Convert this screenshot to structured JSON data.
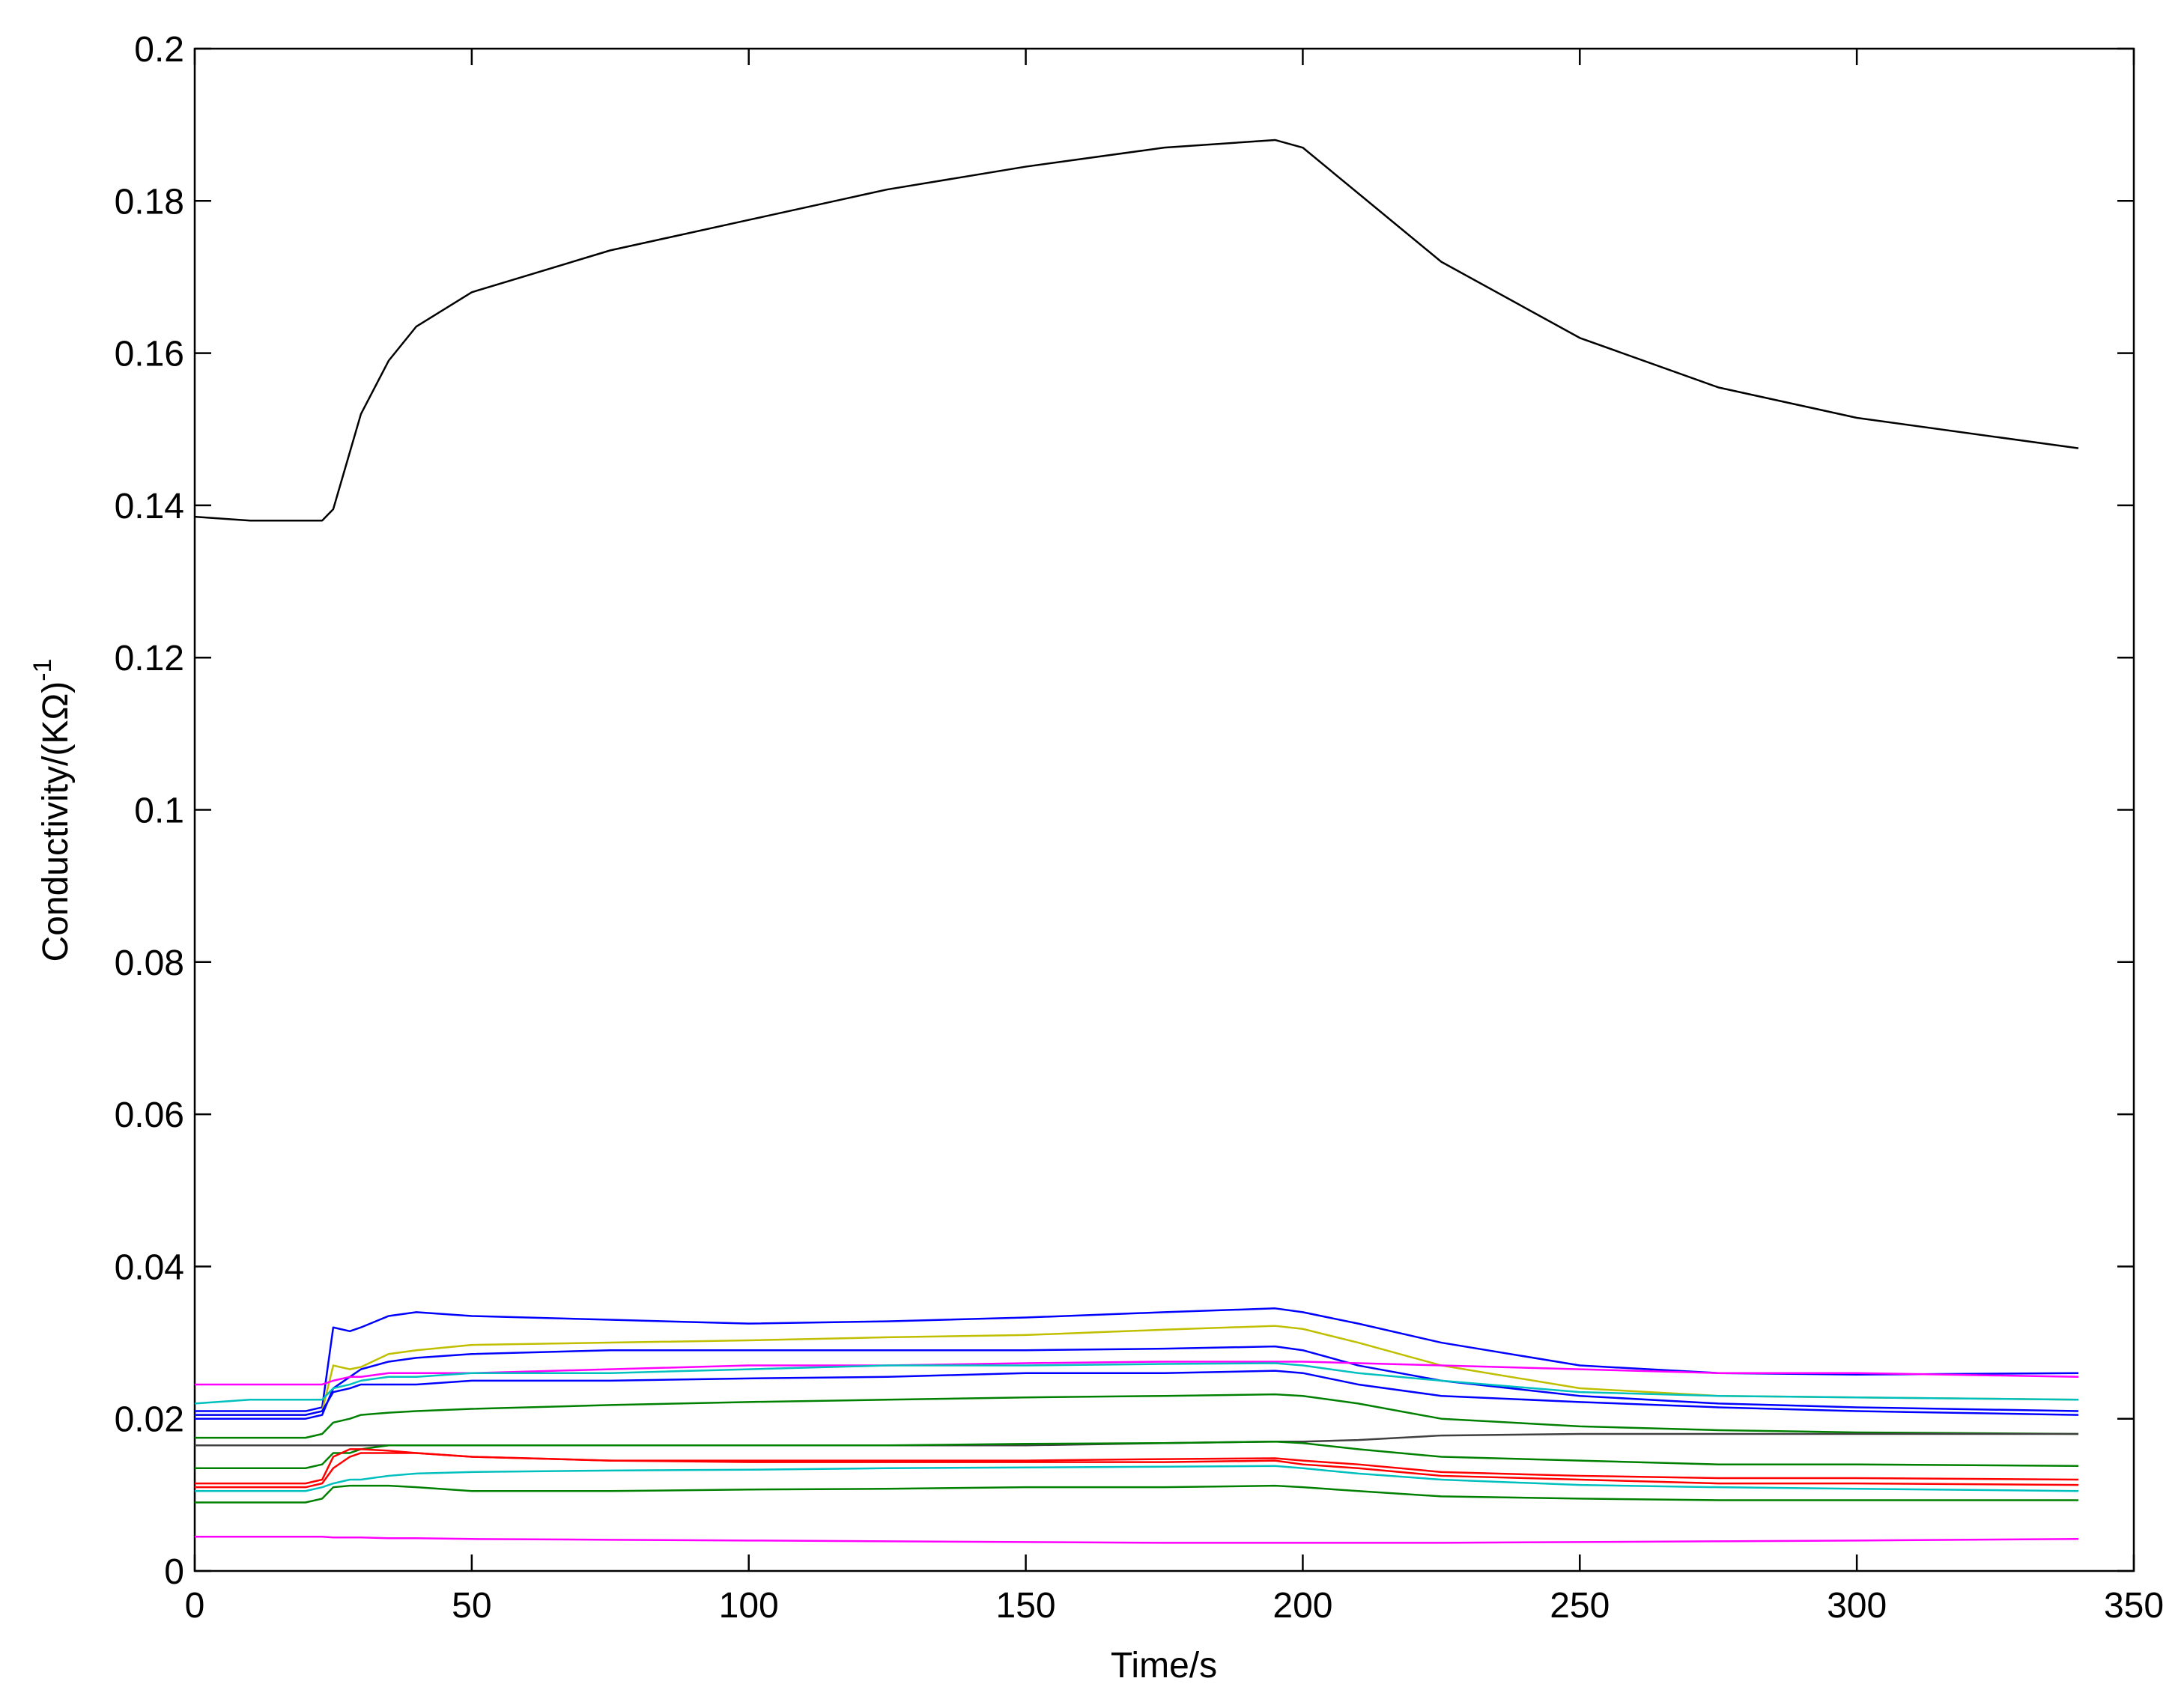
{
  "chart_data": {
    "type": "line",
    "xlabel": "Time/s",
    "ylabel": "Conductivity/(KΩ)",
    "ylabel_superscript": "-1",
    "xlim": [
      0,
      350
    ],
    "xticks": [
      0,
      50,
      100,
      150,
      200,
      250,
      300,
      350
    ],
    "ylim": [
      0,
      0.2
    ],
    "yticks": [
      0,
      0.02,
      0.04,
      0.06,
      0.08,
      0.1,
      0.12,
      0.14,
      0.16,
      0.18,
      0.2
    ],
    "grid": false,
    "x": [
      0,
      10,
      20,
      23,
      25,
      28,
      30,
      35,
      40,
      50,
      75,
      100,
      125,
      150,
      175,
      195,
      200,
      210,
      225,
      250,
      275,
      300,
      340
    ],
    "series": [
      {
        "color": "#000000",
        "values": [
          0.1385,
          0.138,
          0.138,
          0.138,
          0.1395,
          0.147,
          0.152,
          0.159,
          0.1635,
          0.168,
          0.1735,
          0.1775,
          0.1815,
          0.1845,
          0.187,
          0.188,
          0.187,
          0.181,
          0.172,
          0.162,
          0.1555,
          0.1515,
          0.1475
        ]
      },
      {
        "color": "#0000ff",
        "values": [
          0.021,
          0.021,
          0.021,
          0.0215,
          0.032,
          0.0315,
          0.032,
          0.0335,
          0.034,
          0.0335,
          0.033,
          0.0325,
          0.0328,
          0.0333,
          0.034,
          0.0345,
          0.034,
          0.0325,
          0.03,
          0.027,
          0.026,
          0.0258,
          0.026
        ]
      },
      {
        "color": "#bfbf00",
        "values": [
          0.0205,
          0.0205,
          0.0205,
          0.021,
          0.027,
          0.0265,
          0.0268,
          0.0285,
          0.029,
          0.0297,
          0.03,
          0.0303,
          0.0307,
          0.031,
          0.0317,
          0.0322,
          0.0318,
          0.03,
          0.027,
          0.024,
          0.023,
          0.0228,
          0.0225
        ]
      },
      {
        "color": "#0000ff",
        "values": [
          0.02,
          0.02,
          0.02,
          0.0205,
          0.024,
          0.0255,
          0.0265,
          0.0275,
          0.028,
          0.0285,
          0.029,
          0.029,
          0.029,
          0.029,
          0.0292,
          0.0295,
          0.029,
          0.027,
          0.025,
          0.023,
          0.022,
          0.0215,
          0.021
        ]
      },
      {
        "color": "#ff00ff",
        "values": [
          0.0245,
          0.0245,
          0.0245,
          0.0245,
          0.025,
          0.0255,
          0.0255,
          0.026,
          0.026,
          0.026,
          0.0265,
          0.027,
          0.027,
          0.0273,
          0.0275,
          0.0275,
          0.0275,
          0.0273,
          0.027,
          0.0265,
          0.026,
          0.026,
          0.0255
        ]
      },
      {
        "color": "#00bfbf",
        "values": [
          0.022,
          0.0225,
          0.0225,
          0.0225,
          0.024,
          0.0245,
          0.025,
          0.0255,
          0.0255,
          0.026,
          0.026,
          0.0265,
          0.027,
          0.027,
          0.0272,
          0.0273,
          0.027,
          0.026,
          0.025,
          0.0235,
          0.023,
          0.0228,
          0.0225
        ]
      },
      {
        "color": "#0000ff",
        "values": [
          0.0205,
          0.0205,
          0.0205,
          0.021,
          0.0235,
          0.024,
          0.0245,
          0.0245,
          0.0245,
          0.025,
          0.025,
          0.0253,
          0.0255,
          0.026,
          0.026,
          0.0263,
          0.026,
          0.0245,
          0.023,
          0.0222,
          0.0215,
          0.021,
          0.0205
        ]
      },
      {
        "color": "#008000",
        "values": [
          0.0175,
          0.0175,
          0.0175,
          0.018,
          0.0195,
          0.02,
          0.0205,
          0.0208,
          0.021,
          0.0213,
          0.0218,
          0.0222,
          0.0225,
          0.0228,
          0.023,
          0.0232,
          0.023,
          0.022,
          0.02,
          0.019,
          0.0185,
          0.0182,
          0.018
        ]
      },
      {
        "color": "#404040",
        "values": [
          0.0165,
          0.0165,
          0.0165,
          0.0165,
          0.0165,
          0.0165,
          0.0165,
          0.0165,
          0.0165,
          0.0165,
          0.0165,
          0.0165,
          0.0165,
          0.0165,
          0.0168,
          0.017,
          0.017,
          0.0172,
          0.0178,
          0.018,
          0.018,
          0.018,
          0.018
        ]
      },
      {
        "color": "#008000",
        "values": [
          0.0135,
          0.0135,
          0.0135,
          0.014,
          0.0155,
          0.0155,
          0.016,
          0.0165,
          0.0165,
          0.0165,
          0.0165,
          0.0165,
          0.0165,
          0.0167,
          0.0168,
          0.017,
          0.0168,
          0.016,
          0.015,
          0.0145,
          0.014,
          0.014,
          0.0138
        ]
      },
      {
        "color": "#ff0000",
        "values": [
          0.0115,
          0.0115,
          0.0115,
          0.012,
          0.015,
          0.016,
          0.016,
          0.0158,
          0.0155,
          0.015,
          0.0145,
          0.0145,
          0.0145,
          0.0145,
          0.0147,
          0.0148,
          0.0145,
          0.014,
          0.013,
          0.0125,
          0.0122,
          0.0122,
          0.012
        ]
      },
      {
        "color": "#ff0000",
        "values": [
          0.011,
          0.011,
          0.011,
          0.0115,
          0.0135,
          0.015,
          0.0155,
          0.0155,
          0.0155,
          0.015,
          0.0145,
          0.0143,
          0.0143,
          0.0143,
          0.0143,
          0.0145,
          0.014,
          0.0135,
          0.0125,
          0.012,
          0.0115,
          0.0115,
          0.0113
        ]
      },
      {
        "color": "#00bfbf",
        "values": [
          0.0105,
          0.0105,
          0.0105,
          0.011,
          0.0115,
          0.012,
          0.012,
          0.0125,
          0.0128,
          0.013,
          0.0132,
          0.0133,
          0.0135,
          0.0136,
          0.0137,
          0.0138,
          0.0135,
          0.0128,
          0.012,
          0.0113,
          0.011,
          0.0108,
          0.0105
        ]
      },
      {
        "color": "#008000",
        "values": [
          0.009,
          0.009,
          0.009,
          0.0095,
          0.011,
          0.0112,
          0.0112,
          0.0112,
          0.011,
          0.0105,
          0.0105,
          0.0107,
          0.0108,
          0.011,
          0.011,
          0.0112,
          0.011,
          0.0105,
          0.0098,
          0.0095,
          0.0093,
          0.0093,
          0.0093
        ]
      },
      {
        "color": "#ff00ff",
        "values": [
          0.0045,
          0.0045,
          0.0045,
          0.0045,
          0.0044,
          0.0044,
          0.0044,
          0.0043,
          0.0043,
          0.0042,
          0.0041,
          0.004,
          0.0039,
          0.0038,
          0.0037,
          0.0037,
          0.0037,
          0.0037,
          0.0037,
          0.0038,
          0.0039,
          0.004,
          0.0042
        ]
      }
    ]
  }
}
